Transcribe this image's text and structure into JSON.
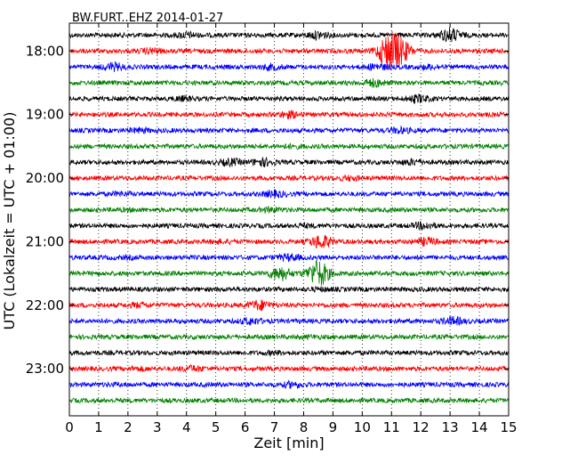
{
  "chart_data": {
    "type": "line",
    "title": "BW.FURT..EHZ 2014-01-27",
    "xlabel": "Zeit  [min]",
    "ylabel": "UTC (Lokalzeit = UTC + 01:00)",
    "xlim": [
      0,
      15
    ],
    "x_ticks": [
      "0",
      "1",
      "2",
      "3",
      "4",
      "5",
      "6",
      "7",
      "8",
      "9",
      "10",
      "11",
      "12",
      "13",
      "14",
      "15"
    ],
    "y_tick_labels": [
      "18:00",
      "19:00",
      "20:00",
      "21:00",
      "22:00",
      "23:00"
    ],
    "grid": "vertical-dotted",
    "trace_interval_minutes": 15,
    "start_time": "17:45",
    "trace_colors": [
      "#000000",
      "#ff0000",
      "#0000ff",
      "#007f00"
    ],
    "traces": [
      {
        "start": "17:45",
        "color": "#000000",
        "events": [
          [
            4,
            1.4
          ],
          [
            8.5,
            1.6
          ],
          [
            13,
            2.2
          ]
        ]
      },
      {
        "start": "18:00",
        "color": "#ff0000",
        "events": [
          [
            2.8,
            1.4
          ],
          [
            10.9,
            4.2
          ],
          [
            11.3,
            3.0
          ]
        ]
      },
      {
        "start": "18:15",
        "color": "#0000ff",
        "events": [
          [
            1.5,
            1.6
          ],
          [
            6.9,
            1.4
          ],
          [
            10.5,
            1.5
          ],
          [
            12.3,
            1.3
          ]
        ]
      },
      {
        "start": "18:30",
        "color": "#007f00",
        "events": [
          [
            10.4,
            1.6
          ]
        ]
      },
      {
        "start": "18:45",
        "color": "#000000",
        "events": [
          [
            3.9,
            1.3
          ],
          [
            11.9,
            1.6
          ]
        ]
      },
      {
        "start": "19:00",
        "color": "#ff0000",
        "events": [
          [
            7.5,
            1.5
          ]
        ]
      },
      {
        "start": "19:15",
        "color": "#0000ff",
        "events": [
          [
            2.4,
            1.3
          ],
          [
            11.3,
            1.4
          ]
        ]
      },
      {
        "start": "19:30",
        "color": "#007f00",
        "events": [
          [
            7.6,
            1.2
          ]
        ]
      },
      {
        "start": "19:45",
        "color": "#000000",
        "events": [
          [
            5.5,
            1.5
          ],
          [
            6.6,
            1.6
          ],
          [
            11.7,
            1.4
          ]
        ]
      },
      {
        "start": "20:00",
        "color": "#ff0000",
        "events": [
          [
            9.6,
            1.3
          ]
        ]
      },
      {
        "start": "20:15",
        "color": "#0000ff",
        "events": [
          [
            7.0,
            1.5
          ],
          [
            1.8,
            1.2
          ]
        ]
      },
      {
        "start": "20:30",
        "color": "#007f00",
        "events": [
          [
            6.9,
            1.3
          ],
          [
            2.0,
            1.1
          ]
        ]
      },
      {
        "start": "20:45",
        "color": "#000000",
        "events": [
          [
            8.0,
            1.2
          ],
          [
            12.1,
            1.5
          ]
        ]
      },
      {
        "start": "21:00",
        "color": "#ff0000",
        "events": [
          [
            8.6,
            2.2
          ],
          [
            12.2,
            1.6
          ],
          [
            5.2,
            1.2
          ]
        ]
      },
      {
        "start": "21:15",
        "color": "#0000ff",
        "events": [
          [
            7.5,
            1.5
          ],
          [
            2.0,
            1.1
          ]
        ]
      },
      {
        "start": "21:30",
        "color": "#007f00",
        "events": [
          [
            8.5,
            3.5
          ],
          [
            7.2,
            2.2
          ]
        ]
      },
      {
        "start": "21:45",
        "color": "#000000",
        "events": [
          [
            8.6,
            1.2
          ]
        ]
      },
      {
        "start": "22:00",
        "color": "#ff0000",
        "events": [
          [
            6.5,
            1.8
          ],
          [
            2.4,
            1.3
          ]
        ]
      },
      {
        "start": "22:15",
        "color": "#0000ff",
        "events": [
          [
            6.2,
            1.5
          ],
          [
            13.1,
            1.6
          ]
        ]
      },
      {
        "start": "22:30",
        "color": "#007f00",
        "events": [
          [
            8.2,
            1.1
          ]
        ]
      },
      {
        "start": "22:45",
        "color": "#000000",
        "events": [
          [
            7.0,
            1.2
          ]
        ]
      },
      {
        "start": "23:00",
        "color": "#ff0000",
        "events": [
          [
            4.2,
            1.4
          ],
          [
            2.4,
            1.2
          ]
        ]
      },
      {
        "start": "23:15",
        "color": "#0000ff",
        "events": [
          [
            7.6,
            1.4
          ],
          [
            1.6,
            1.1
          ]
        ]
      },
      {
        "start": "23:30",
        "color": "#007f00",
        "events": [
          [
            9.0,
            1.0
          ]
        ]
      }
    ]
  }
}
